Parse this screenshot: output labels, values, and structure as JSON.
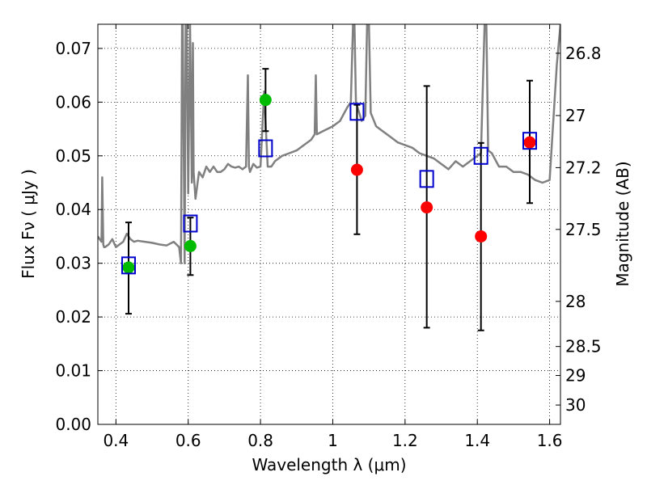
{
  "chart_data": {
    "type": "scatter",
    "title": "",
    "xlabel": "Wavelength  λ (μm)",
    "ylabel": "Flux  Fν  ( μJy )",
    "y2label": "Magnitude (AB)",
    "xlim": [
      0.35,
      1.63
    ],
    "ylim": [
      0.0,
      0.0745
    ],
    "grid": true,
    "x_ticks": [
      0.4,
      0.6,
      0.8,
      1.0,
      1.2,
      1.4,
      1.6
    ],
    "x_tick_labels": [
      "0.4",
      "0.6",
      "0.8",
      "1",
      "1.2",
      "1.4",
      "1.6"
    ],
    "y_ticks": [
      0.0,
      0.01,
      0.02,
      0.03,
      0.04,
      0.05,
      0.06,
      0.07
    ],
    "y_tick_labels": [
      "0.00",
      "0.01",
      "0.02",
      "0.03",
      "0.04",
      "0.05",
      "0.06",
      "0.07"
    ],
    "y2_ticks": [
      {
        "label": "26.8",
        "flux": 0.0691
      },
      {
        "label": "27",
        "flux": 0.0575
      },
      {
        "label": "27.2",
        "flux": 0.0478
      },
      {
        "label": "27.5",
        "flux": 0.0363
      },
      {
        "label": "28",
        "flux": 0.0229
      },
      {
        "label": "28.5",
        "flux": 0.0145
      },
      {
        "label": "29",
        "flux": 0.0091
      },
      {
        "label": "30",
        "flux": 0.0036
      }
    ],
    "series": [
      {
        "marker": "circle",
        "color": "#00bb00",
        "points": [
          {
            "x": 0.435,
            "y": 0.0292
          },
          {
            "x": 0.606,
            "y": 0.0332
          },
          {
            "x": 0.814,
            "y": 0.0604
          }
        ]
      },
      {
        "marker": "circle",
        "color": "#ff0000",
        "points": [
          {
            "x": 1.067,
            "y": 0.0474
          },
          {
            "x": 1.26,
            "y": 0.0404
          },
          {
            "x": 1.41,
            "y": 0.035
          },
          {
            "x": 1.545,
            "y": 0.0525
          }
        ]
      },
      {
        "marker": "open-square",
        "color": "#0000cc",
        "points": [
          {
            "x": 0.435,
            "y": 0.0296
          },
          {
            "x": 0.606,
            "y": 0.0374
          },
          {
            "x": 0.814,
            "y": 0.0514
          },
          {
            "x": 1.067,
            "y": 0.0582
          },
          {
            "x": 1.26,
            "y": 0.0457
          },
          {
            "x": 1.41,
            "y": 0.05
          },
          {
            "x": 1.545,
            "y": 0.0528
          }
        ]
      }
    ],
    "error_bars": [
      {
        "x": 0.435,
        "y": 0.0292,
        "lo": 0.0206,
        "hi": 0.0376
      },
      {
        "x": 0.606,
        "y": 0.0332,
        "lo": 0.0278,
        "hi": 0.0385
      },
      {
        "x": 0.814,
        "y": 0.0604,
        "lo": 0.0546,
        "hi": 0.0662
      },
      {
        "x": 1.067,
        "y": 0.0474,
        "lo": 0.0354,
        "hi": 0.0595
      },
      {
        "x": 1.26,
        "y": 0.0404,
        "lo": 0.018,
        "hi": 0.063
      },
      {
        "x": 1.41,
        "y": 0.035,
        "lo": 0.0175,
        "hi": 0.0524
      },
      {
        "x": 1.545,
        "y": 0.0525,
        "lo": 0.0412,
        "hi": 0.064
      }
    ],
    "spectrum": {
      "color": "#808080",
      "x": [
        0.35,
        0.355,
        0.36,
        0.362,
        0.365,
        0.367,
        0.37,
        0.38,
        0.39,
        0.4,
        0.41,
        0.42,
        0.43,
        0.44,
        0.45,
        0.46,
        0.48,
        0.5,
        0.52,
        0.54,
        0.56,
        0.575,
        0.58,
        0.583,
        0.585,
        0.59,
        0.593,
        0.596,
        0.6,
        0.605,
        0.61,
        0.613,
        0.615,
        0.62,
        0.63,
        0.64,
        0.65,
        0.66,
        0.67,
        0.68,
        0.69,
        0.7,
        0.71,
        0.72,
        0.73,
        0.74,
        0.75,
        0.76,
        0.765,
        0.768,
        0.771,
        0.78,
        0.79,
        0.8,
        0.81,
        0.82,
        0.83,
        0.84,
        0.86,
        0.88,
        0.9,
        0.92,
        0.94,
        0.95,
        0.953,
        0.956,
        0.97,
        1.0,
        1.02,
        1.04,
        1.05,
        1.056,
        1.06,
        1.064,
        1.08,
        1.09,
        1.095,
        1.1,
        1.105,
        1.12,
        1.14,
        1.16,
        1.18,
        1.2,
        1.22,
        1.24,
        1.26,
        1.28,
        1.3,
        1.32,
        1.34,
        1.36,
        1.38,
        1.4,
        1.41,
        1.42,
        1.425,
        1.43,
        1.44,
        1.46,
        1.48,
        1.5,
        1.52,
        1.54,
        1.56,
        1.58,
        1.6,
        1.62,
        1.63
      ],
      "y": [
        0.035,
        0.0345,
        0.034,
        0.046,
        0.0335,
        0.033,
        0.033,
        0.0335,
        0.0345,
        0.033,
        0.0335,
        0.034,
        0.0355,
        0.0345,
        0.034,
        0.0342,
        0.034,
        0.0338,
        0.0335,
        0.0333,
        0.034,
        0.033,
        0.03,
        0.0745,
        0.0745,
        0.03,
        0.0745,
        0.0745,
        0.043,
        0.0745,
        0.045,
        0.071,
        0.047,
        0.042,
        0.047,
        0.046,
        0.048,
        0.047,
        0.048,
        0.047,
        0.047,
        0.0475,
        0.0485,
        0.048,
        0.0478,
        0.048,
        0.0475,
        0.048,
        0.065,
        0.048,
        0.047,
        0.0485,
        0.0478,
        0.048,
        0.062,
        0.048,
        0.048,
        0.049,
        0.05,
        0.0505,
        0.051,
        0.052,
        0.053,
        0.054,
        0.065,
        0.054,
        0.0545,
        0.0555,
        0.0565,
        0.059,
        0.06,
        0.0745,
        0.0745,
        0.06,
        0.0565,
        0.0575,
        0.0745,
        0.0745,
        0.058,
        0.0555,
        0.0545,
        0.0535,
        0.0525,
        0.052,
        0.0515,
        0.0505,
        0.05,
        0.0495,
        0.0485,
        0.0475,
        0.049,
        0.048,
        0.049,
        0.05,
        0.0505,
        0.0745,
        0.0745,
        0.051,
        0.0505,
        0.048,
        0.048,
        0.047,
        0.047,
        0.0465,
        0.0455,
        0.045,
        0.0455,
        0.067,
        0.0745
      ]
    }
  }
}
